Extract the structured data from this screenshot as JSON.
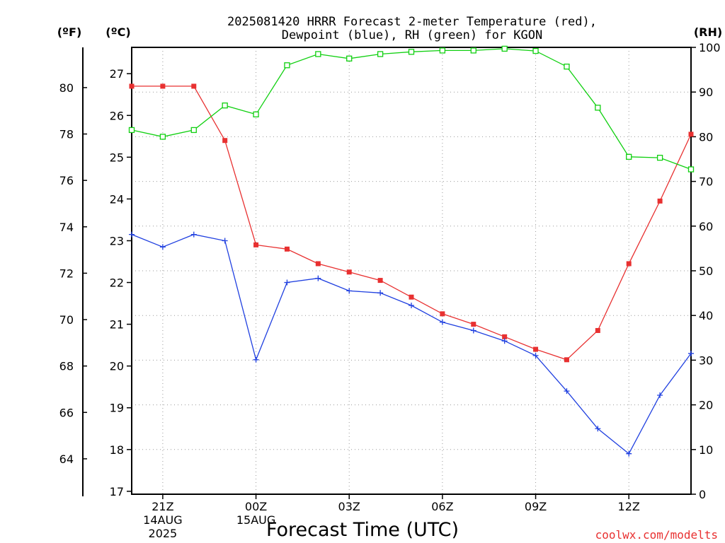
{
  "chart_data": {
    "type": "line",
    "title_line1": "2025081420 HRRR Forecast 2-meter Temperature (red),",
    "title_line2": "Dewpoint (blue), RH (green) for KGON",
    "xlabel": "Forecast Time (UTC)",
    "left_outer_unit": "(ºF)",
    "left_inner_unit": "(ºC)",
    "right_unit": "(RH)",
    "credit": "coolwx.com/modelts",
    "celsius_range": [
      16.93,
      27.63
    ],
    "fahrenheit_ticks": [
      "64",
      "66",
      "68",
      "70",
      "72",
      "74",
      "76",
      "78",
      "80"
    ],
    "celsius_ticks": [
      "17",
      "18",
      "19",
      "20",
      "21",
      "22",
      "23",
      "24",
      "25",
      "26",
      "27"
    ],
    "rh_range": [
      0,
      100
    ],
    "rh_ticks": [
      "0",
      "10",
      "20",
      "30",
      "40",
      "50",
      "60",
      "70",
      "80",
      "90",
      "100"
    ],
    "x_ticks": [
      {
        "hour": 21,
        "line1": "21Z",
        "line2": "14AUG",
        "line3": "2025"
      },
      {
        "hour": 24,
        "line1": "00Z",
        "line2": "15AUG",
        "line3": ""
      },
      {
        "hour": 27,
        "line1": "03Z",
        "line2": "",
        "line3": ""
      },
      {
        "hour": 30,
        "line1": "06Z",
        "line2": "",
        "line3": ""
      },
      {
        "hour": 33,
        "line1": "09Z",
        "line2": "",
        "line3": ""
      },
      {
        "hour": 36,
        "line1": "12Z",
        "line2": "",
        "line3": ""
      }
    ],
    "x_hours": [
      20,
      21,
      22,
      23,
      24,
      25,
      26,
      27,
      28,
      29,
      30,
      31,
      32,
      33,
      34,
      35,
      36,
      37,
      38
    ],
    "grid": true,
    "series": [
      {
        "name": "Temperature",
        "axis": "celsius",
        "color": "#e83030",
        "marker": "filled-square",
        "values": [
          26.7,
          26.7,
          26.7,
          25.4,
          22.9,
          22.8,
          22.45,
          22.25,
          22.05,
          21.65,
          21.25,
          21.0,
          20.7,
          20.4,
          20.15,
          20.85,
          22.45,
          23.95,
          25.55
        ]
      },
      {
        "name": "Dewpoint",
        "axis": "celsius",
        "color": "#2040e0",
        "marker": "plus",
        "values": [
          23.15,
          22.85,
          23.15,
          23.0,
          20.15,
          22.0,
          22.1,
          21.8,
          21.75,
          21.45,
          21.05,
          20.85,
          20.6,
          20.25,
          19.4,
          18.5,
          17.9,
          19.3,
          20.3
        ]
      },
      {
        "name": "RH",
        "axis": "rh",
        "color": "#10d010",
        "marker": "open-square",
        "values": [
          81.5,
          80,
          81.5,
          87,
          85,
          96,
          98.5,
          97.5,
          98.5,
          99,
          99.3,
          99.3,
          99.7,
          99.2,
          95.7,
          86.5,
          75.5,
          75.3,
          72.7
        ]
      }
    ]
  }
}
